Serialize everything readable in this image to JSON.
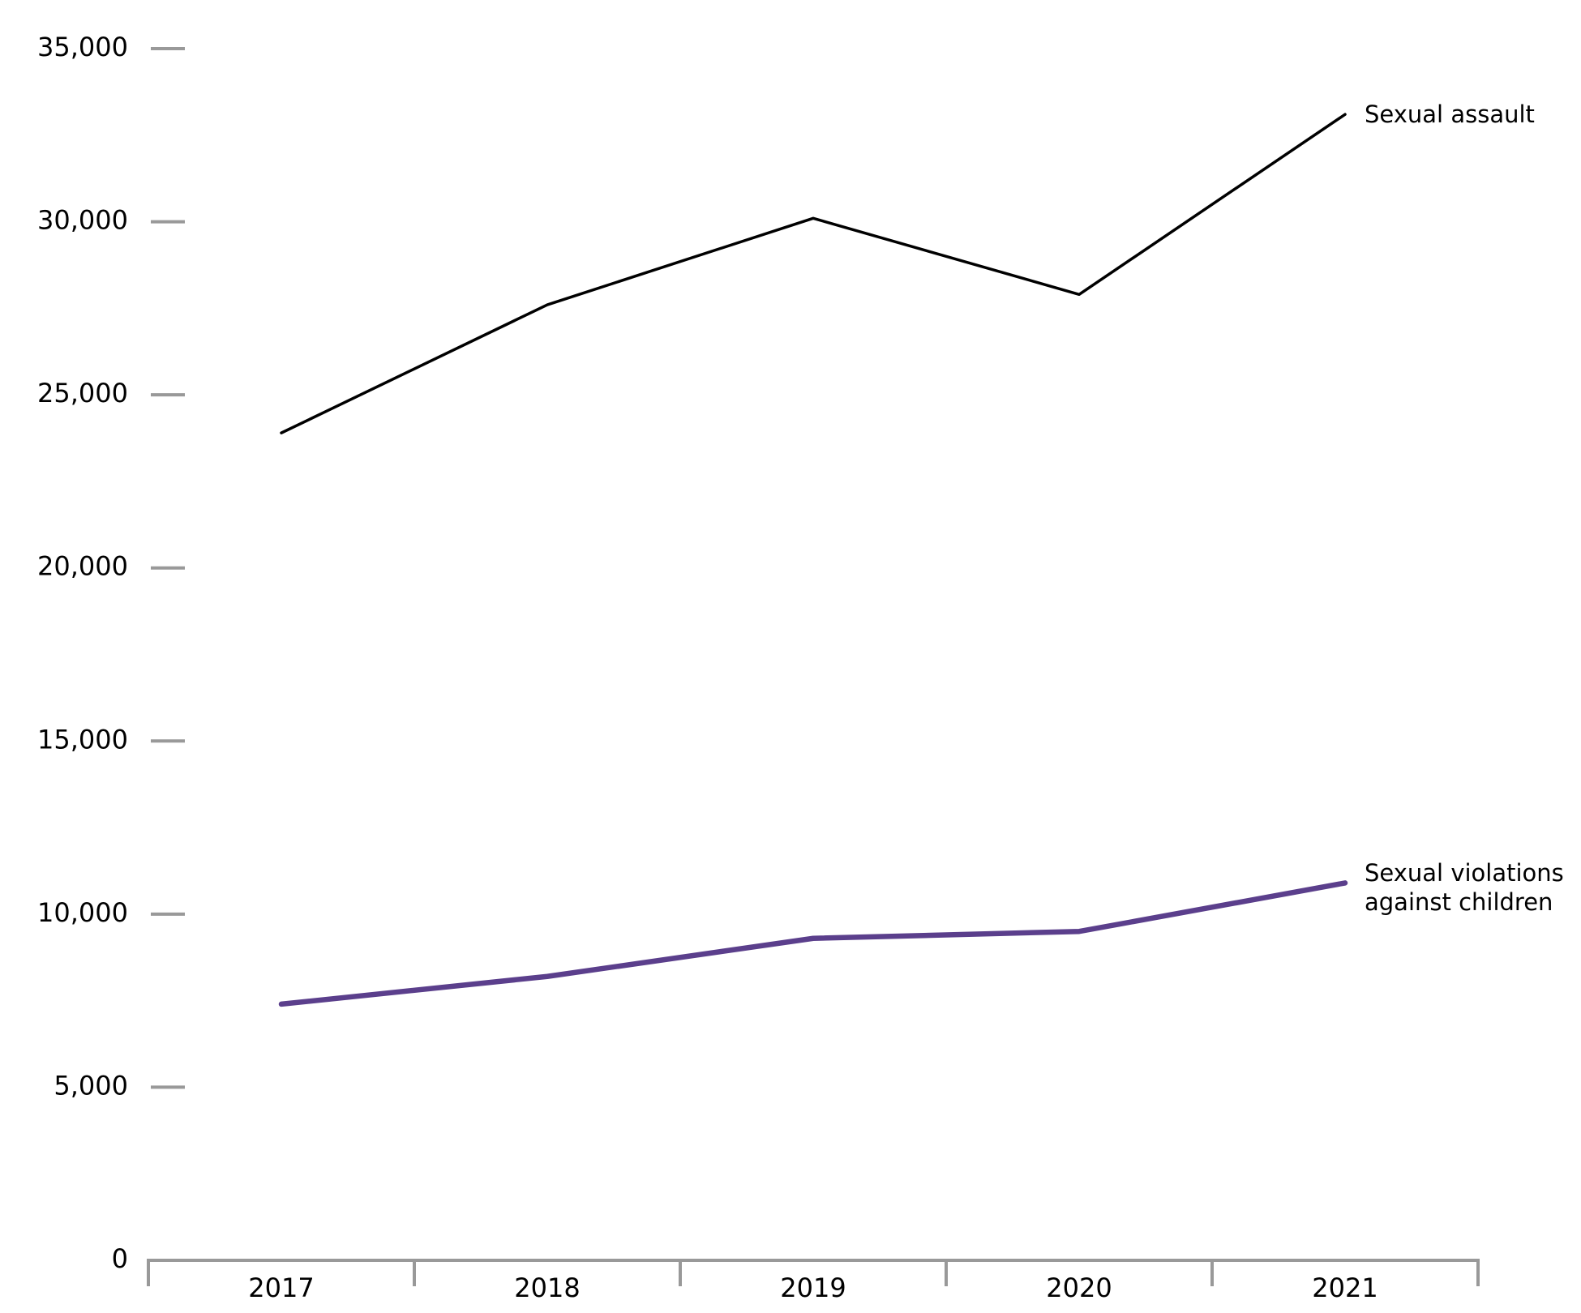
{
  "chart_data": {
    "type": "line",
    "categories": [
      "2017",
      "2018",
      "2019",
      "2020",
      "2021"
    ],
    "series": [
      {
        "name": "Sexual assault",
        "color": "#000000",
        "values": [
          23900,
          27600,
          30100,
          27900,
          33100
        ]
      },
      {
        "name": "Sexual violations against children",
        "color": "#5b3f8c",
        "values": [
          7400,
          8200,
          9300,
          9500,
          10900
        ]
      }
    ],
    "ylim": [
      0,
      35000
    ],
    "yticks": [
      0,
      {
        "value": 5000,
        "label": "5,000"
      },
      {
        "value": 10000,
        "label": "10,000"
      },
      {
        "value": 15000,
        "label": "15,000"
      },
      {
        "value": 20000,
        "label": "20,000"
      },
      {
        "value": 25000,
        "label": "25,000"
      },
      {
        "value": 30000,
        "label": "30,000"
      },
      {
        "value": 35000,
        "label": "35,000"
      }
    ],
    "grid": false
  }
}
